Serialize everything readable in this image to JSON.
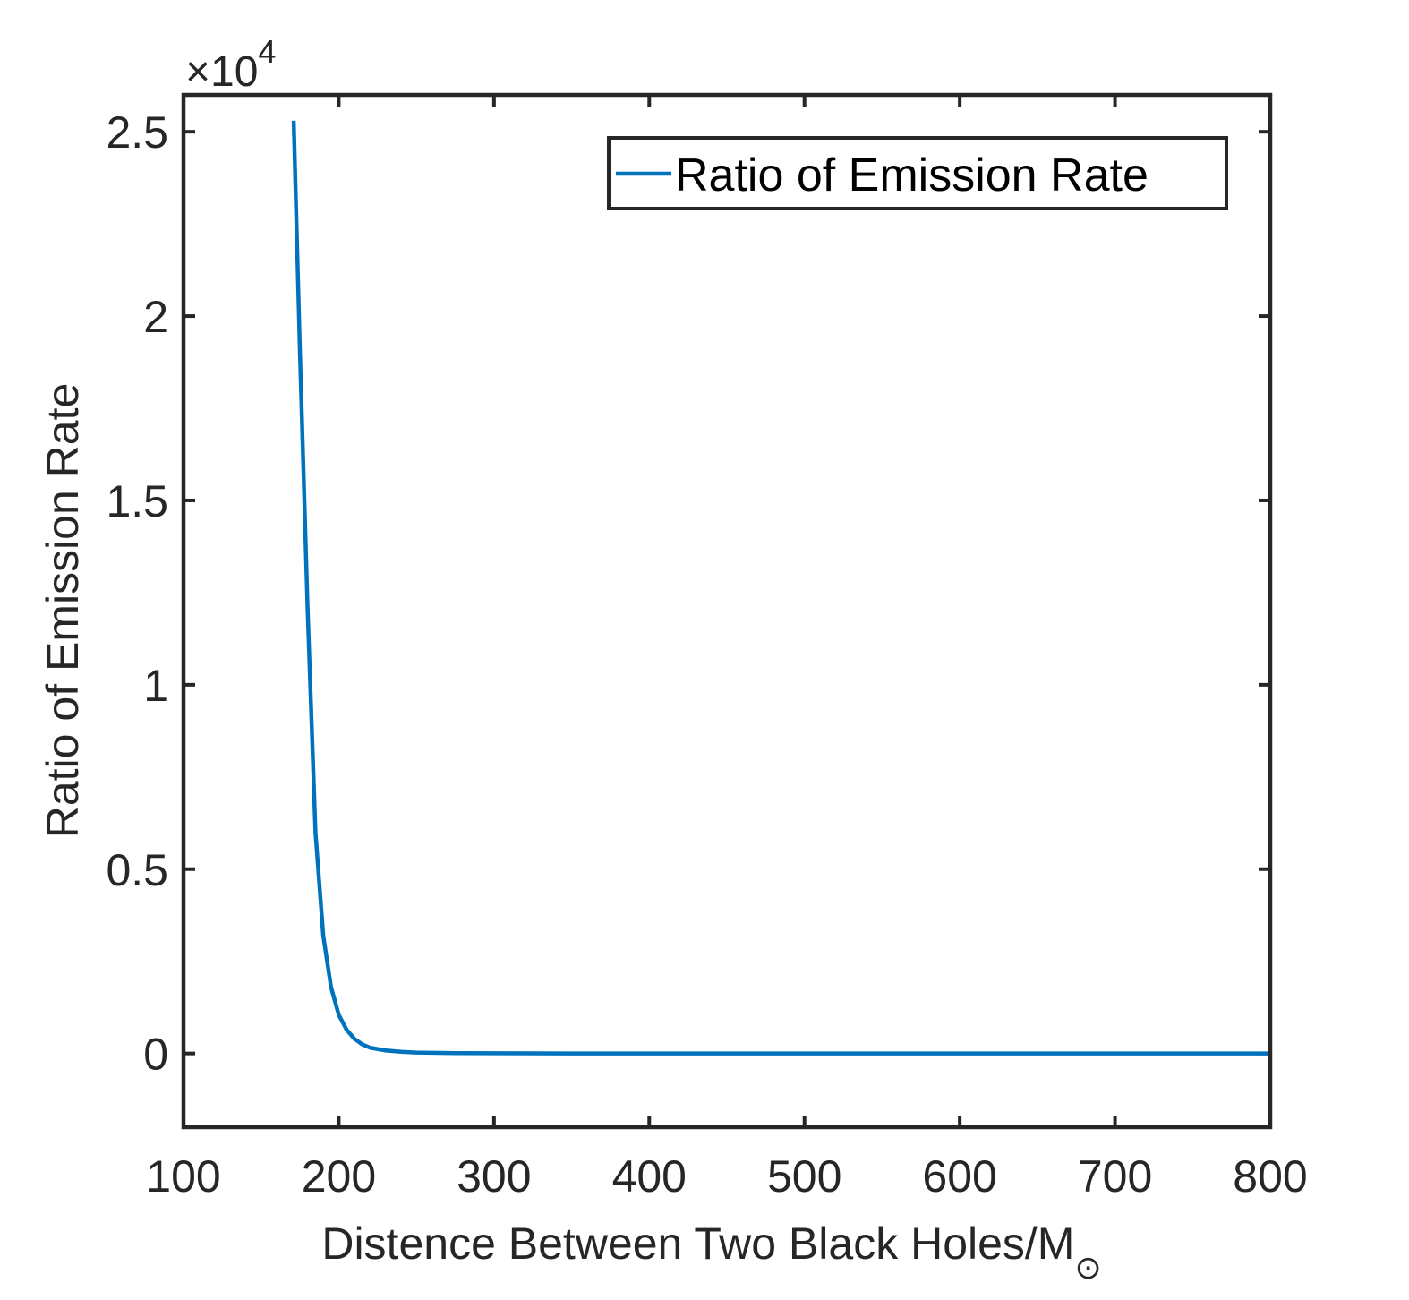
{
  "chart_data": {
    "type": "line",
    "xlabel": "Distence Between Two Black Holes/M",
    "xlabel_subscript": "⊙",
    "ylabel": "Ratio of Emission Rate",
    "y_exponent_prefix": "×10",
    "y_exponent_power": "4",
    "xlim": [
      100,
      800
    ],
    "ylim": [
      -2000,
      26000
    ],
    "x_ticks": [
      100,
      200,
      300,
      400,
      500,
      600,
      700,
      800
    ],
    "x_tick_labels": [
      "100",
      "200",
      "300",
      "400",
      "500",
      "600",
      "700",
      "800"
    ],
    "y_ticks": [
      0,
      5000,
      10000,
      15000,
      20000,
      25000
    ],
    "y_tick_labels": [
      "0",
      "0.5",
      "1",
      "1.5",
      "2",
      "2.5"
    ],
    "grid": false,
    "legend_position": "top-right",
    "series": [
      {
        "name": "Ratio of Emission Rate",
        "color": "#0072BD",
        "x": [
          171,
          175,
          180,
          185,
          190,
          195,
          200,
          205,
          210,
          215,
          220,
          230,
          240,
          250,
          275,
          300,
          350,
          400,
          500,
          600,
          700,
          800
        ],
        "y": [
          25300,
          19000,
          12000,
          6000,
          3200,
          1800,
          1050,
          650,
          400,
          250,
          160,
          80,
          45,
          25,
          10,
          5,
          2,
          1,
          0,
          0,
          0,
          0
        ]
      }
    ]
  }
}
